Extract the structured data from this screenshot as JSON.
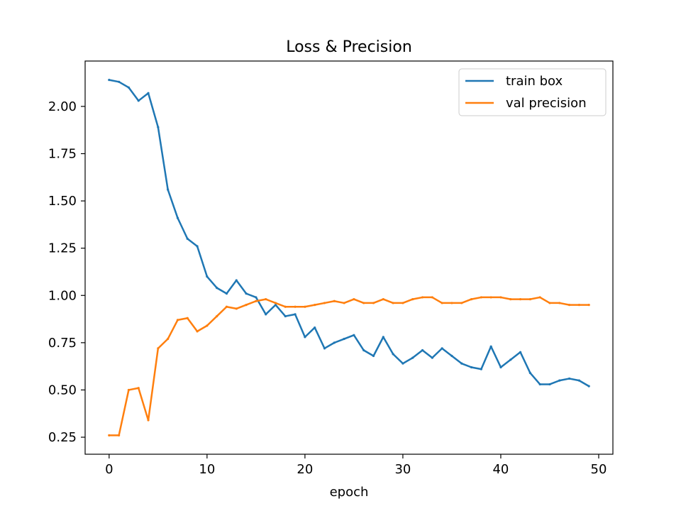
{
  "chart_data": {
    "type": "line",
    "title": "Loss & Precision",
    "xlabel": "epoch",
    "ylabel": "",
    "xlim": [
      -2.45,
      51.45
    ],
    "ylim": [
      0.16,
      2.24
    ],
    "xticks": [
      0,
      10,
      20,
      30,
      40,
      50
    ],
    "yticks": [
      0.25,
      0.5,
      0.75,
      1.0,
      1.25,
      1.5,
      1.75,
      2.0
    ],
    "xtick_labels": [
      "0",
      "10",
      "20",
      "30",
      "40",
      "50"
    ],
    "ytick_labels": [
      "0.25",
      "0.50",
      "0.75",
      "1.00",
      "1.25",
      "1.50",
      "1.75",
      "2.00"
    ],
    "grid": false,
    "legend_position": "top-right",
    "x": [
      0,
      1,
      2,
      3,
      4,
      5,
      6,
      7,
      8,
      9,
      10,
      11,
      12,
      13,
      14,
      15,
      16,
      17,
      18,
      19,
      20,
      21,
      22,
      23,
      24,
      25,
      26,
      27,
      28,
      29,
      30,
      31,
      32,
      33,
      34,
      35,
      36,
      37,
      38,
      39,
      40,
      41,
      42,
      43,
      44,
      45,
      46,
      47,
      48,
      49
    ],
    "series": [
      {
        "name": "train box",
        "color": "#1f77b4",
        "values": [
          2.14,
          2.13,
          2.1,
          2.03,
          2.07,
          1.89,
          1.56,
          1.41,
          1.3,
          1.26,
          1.1,
          1.04,
          1.01,
          1.08,
          1.01,
          0.99,
          0.9,
          0.95,
          0.89,
          0.9,
          0.78,
          0.83,
          0.72,
          0.75,
          0.77,
          0.79,
          0.71,
          0.68,
          0.78,
          0.69,
          0.64,
          0.67,
          0.71,
          0.67,
          0.72,
          0.68,
          0.64,
          0.62,
          0.61,
          0.73,
          0.62,
          0.66,
          0.7,
          0.59,
          0.53,
          0.53,
          0.55,
          0.56,
          0.55,
          0.52
        ]
      },
      {
        "name": "val precision",
        "color": "#ff7f0e",
        "values": [
          0.26,
          0.26,
          0.5,
          0.51,
          0.34,
          0.72,
          0.77,
          0.87,
          0.88,
          0.81,
          0.84,
          0.89,
          0.94,
          0.93,
          0.95,
          0.97,
          0.98,
          0.96,
          0.94,
          0.94,
          0.94,
          0.95,
          0.96,
          0.97,
          0.96,
          0.98,
          0.96,
          0.96,
          0.98,
          0.96,
          0.96,
          0.98,
          0.99,
          0.99,
          0.96,
          0.96,
          0.96,
          0.98,
          0.99,
          0.99,
          0.99,
          0.98,
          0.98,
          0.98,
          0.99,
          0.96,
          0.96,
          0.95,
          0.95,
          0.95
        ]
      }
    ]
  }
}
